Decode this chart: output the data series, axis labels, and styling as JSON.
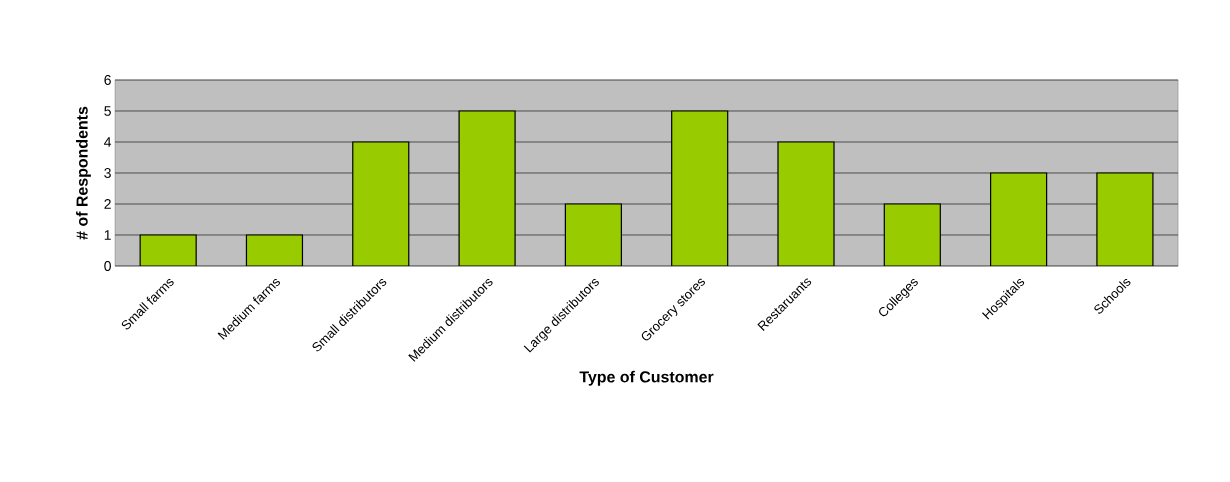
{
  "chart_data": {
    "type": "bar",
    "xlabel": "Type of Customer",
    "ylabel": "# of Respondents",
    "categories": [
      "Small farms",
      "Medium farms",
      "Small distributors",
      "Medium distributors",
      "Large distributors",
      "Grocery stores",
      "Restaruants",
      "Colleges",
      "Hospitals",
      "Schools"
    ],
    "values": [
      1,
      1,
      4,
      5,
      2,
      5,
      4,
      2,
      3,
      3
    ],
    "color": "#99cc00",
    "ylim": [
      0,
      6
    ],
    "yticks": [
      0,
      1,
      2,
      3,
      4,
      5,
      6
    ],
    "grid": "y"
  }
}
